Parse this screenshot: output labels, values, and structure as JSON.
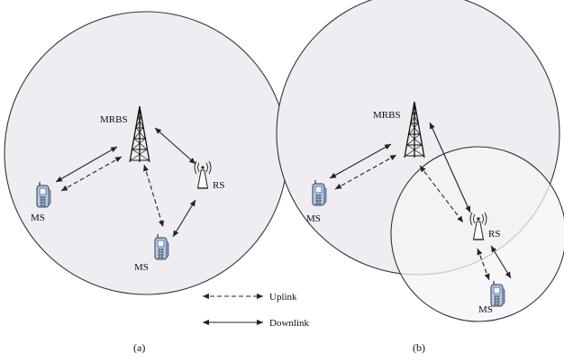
{
  "labels": {
    "mrbs": "MRBS",
    "rs": "RS",
    "ms": "MS"
  },
  "legend": {
    "uplink": "Uplink",
    "downlink": "Downlink"
  },
  "captions": {
    "a": "(a)",
    "b": "(b)"
  },
  "colors": {
    "cell_fill": "#efedf1",
    "small_cell_fill": "#f4f3f6",
    "stroke": "#333333",
    "phone_body": "#b9cbe6"
  }
}
